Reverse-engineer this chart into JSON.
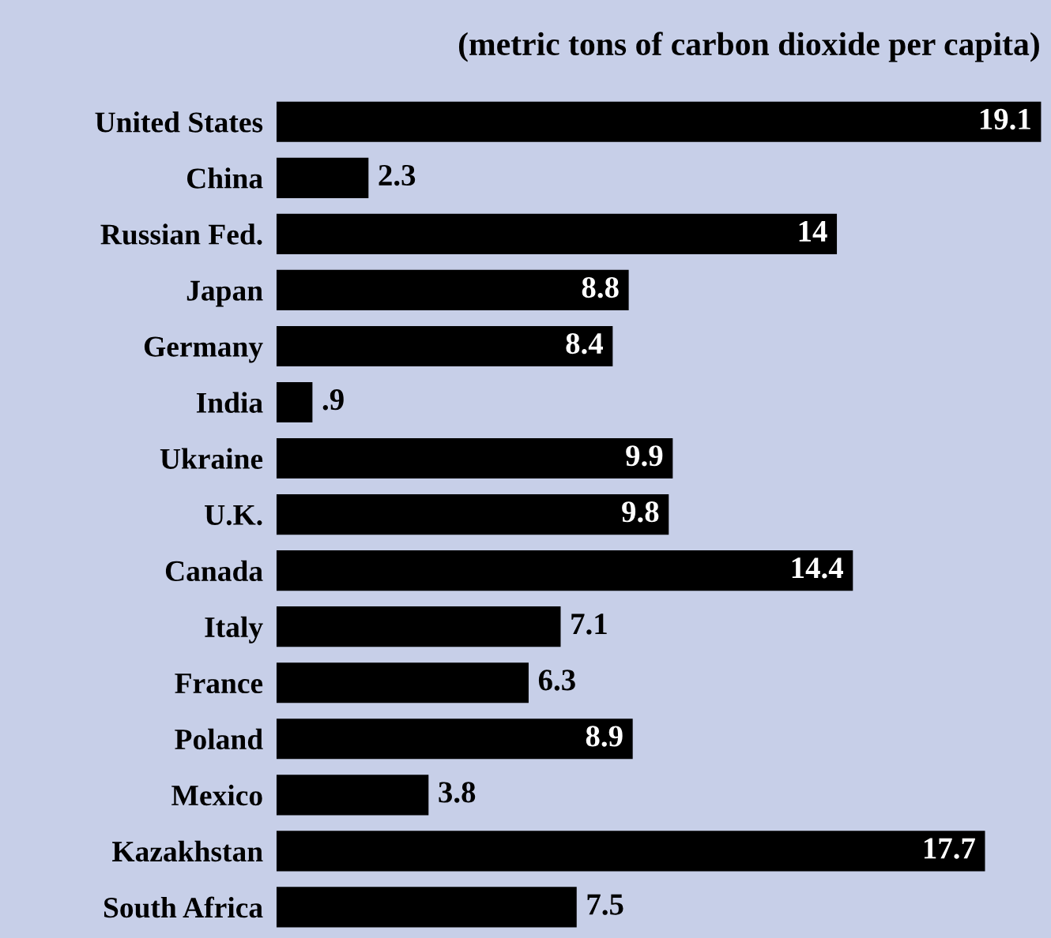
{
  "chart_data": {
    "type": "bar",
    "orientation": "horizontal",
    "title": "(metric tons of carbon dioxide per capita)",
    "categories": [
      "United States",
      "China",
      "Russian Fed.",
      "Japan",
      "Germany",
      "India",
      "Ukraine",
      "U.K.",
      "Canada",
      "Italy",
      "France",
      "Poland",
      "Mexico",
      "Kazakhstan",
      "South Africa"
    ],
    "values": [
      19.1,
      2.3,
      14,
      8.8,
      8.4,
      0.9,
      9.9,
      9.8,
      14.4,
      7.1,
      6.3,
      8.9,
      3.8,
      17.7,
      7.5
    ],
    "value_labels": [
      "19.1",
      "2.3",
      "14",
      "8.8",
      "8.4",
      ".9",
      "9.9",
      "9.8",
      "14.4",
      "7.1",
      "6.3",
      "8.9",
      "3.8",
      "17.7",
      "7.5"
    ],
    "color": "#000000",
    "grid": false,
    "legend": false
  }
}
